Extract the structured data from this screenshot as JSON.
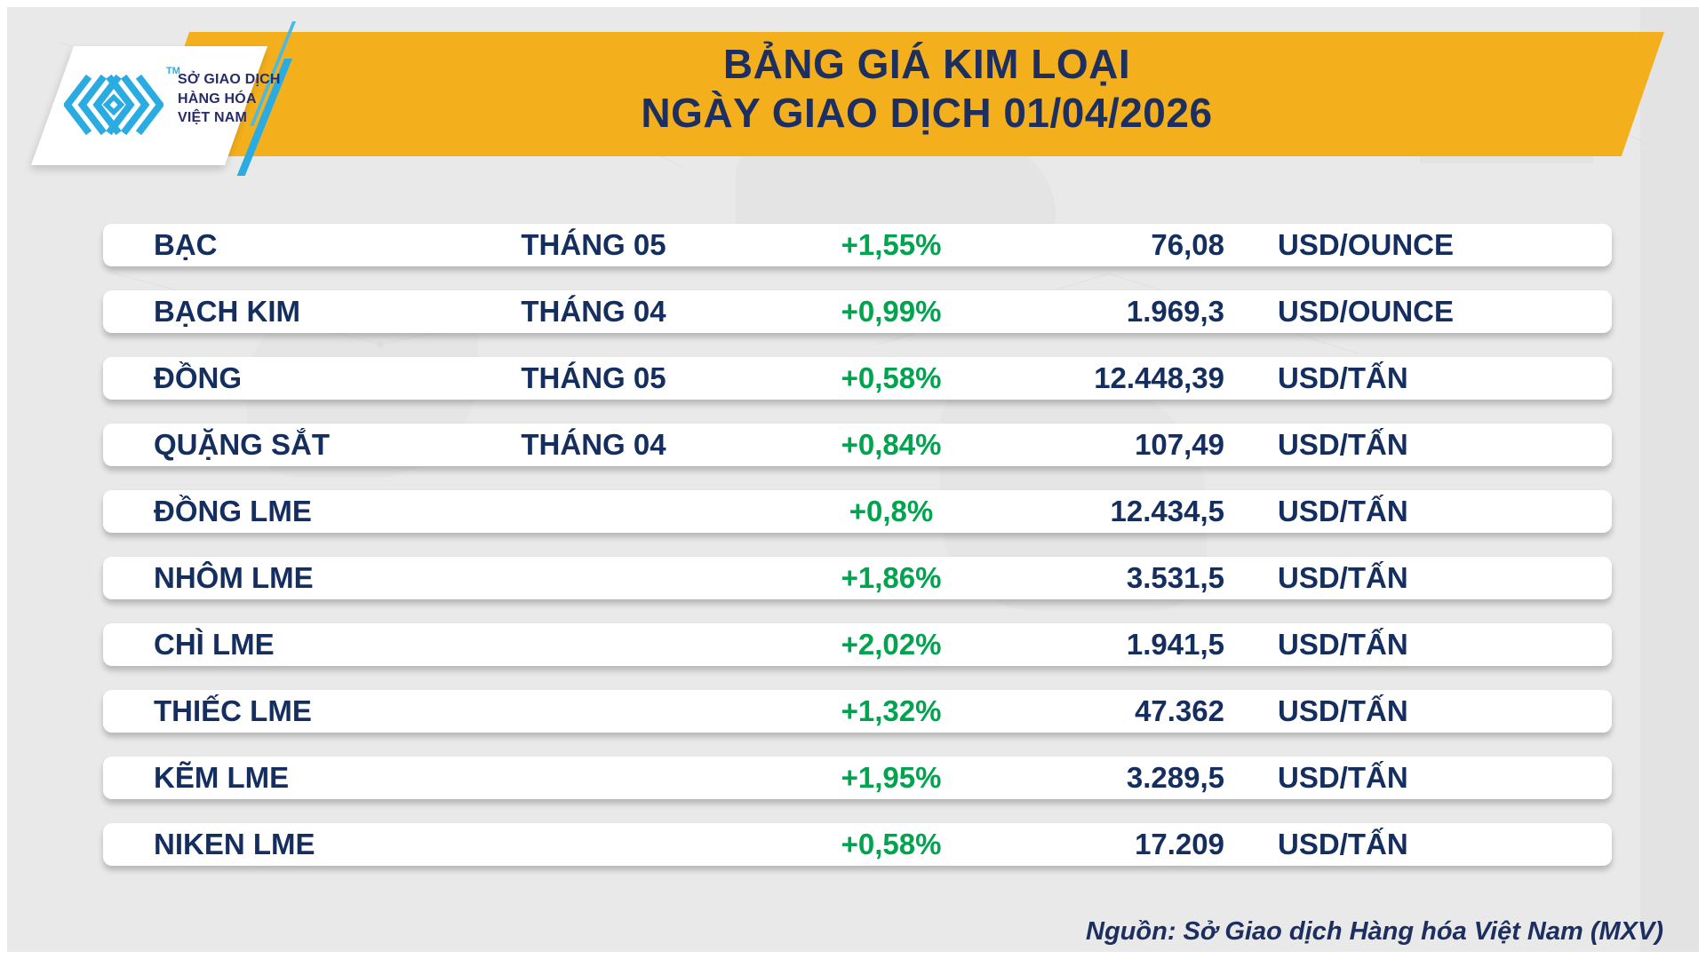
{
  "header": {
    "title_line1": "BẢNG GIÁ KIM LOẠI",
    "title_line2": "NGÀY GIAO DỊCH 01/04/2026",
    "logo": {
      "mark": "mxv-chevron-diamond-mark",
      "trademark": "TM",
      "org_line1": "SỞ GIAO DỊCH",
      "org_line2": "HÀNG HÓA",
      "org_line3": "VIỆT NAM"
    }
  },
  "table": {
    "rows": [
      {
        "name": "BẠC",
        "month": "THÁNG 05",
        "change": "+1,55%",
        "price": "76,08",
        "unit": "USD/OUNCE"
      },
      {
        "name": "BẠCH KIM",
        "month": "THÁNG 04",
        "change": "+0,99%",
        "price": "1.969,3",
        "unit": "USD/OUNCE"
      },
      {
        "name": "ĐỒNG",
        "month": "THÁNG 05",
        "change": "+0,58%",
        "price": "12.448,39",
        "unit": "USD/TẤN"
      },
      {
        "name": "QUẶNG SẮT",
        "month": "THÁNG 04",
        "change": "+0,84%",
        "price": "107,49",
        "unit": "USD/TẤN"
      },
      {
        "name": "ĐỒNG LME",
        "month": "",
        "change": "+0,8%",
        "price": "12.434,5",
        "unit": "USD/TẤN"
      },
      {
        "name": "NHÔM LME",
        "month": "",
        "change": "+1,86%",
        "price": "3.531,5",
        "unit": "USD/TẤN"
      },
      {
        "name": "CHÌ LME",
        "month": "",
        "change": "+2,02%",
        "price": "1.941,5",
        "unit": "USD/TẤN"
      },
      {
        "name": "THIẾC LME",
        "month": "",
        "change": "+1,32%",
        "price": "47.362",
        "unit": "USD/TẤN"
      },
      {
        "name": "KẼM LME",
        "month": "",
        "change": "+1,95%",
        "price": "3.289,5",
        "unit": "USD/TẤN"
      },
      {
        "name": "NIKEN LME",
        "month": "",
        "change": "+0,58%",
        "price": "17.209",
        "unit": "USD/TẤN"
      }
    ]
  },
  "footer": {
    "source": "Nguồn: Sở Giao dịch Hàng hóa Việt Nam (MXV)"
  },
  "colors": {
    "banner_yellow": "#f3af1c",
    "navy_text": "#1c2f60",
    "row_navy": "#142f5f",
    "positive_green": "#00a44f",
    "logo_cyan": "#2aace2",
    "background_gray": "#e9e9e9",
    "row_white": "#ffffff"
  },
  "chart_data": {
    "type": "table",
    "title": "BẢNG GIÁ KIM LOẠI",
    "subtitle": "NGÀY GIAO DỊCH 01/04/2026",
    "source": "Nguồn: Sở Giao dịch Hàng hóa Việt Nam (MXV)",
    "rows": [
      {
        "commodity": "BẠC",
        "contract_month": "THÁNG 05",
        "change_pct": 1.55,
        "price": 76.08,
        "unit": "USD/OUNCE"
      },
      {
        "commodity": "BẠCH KIM",
        "contract_month": "THÁNG 04",
        "change_pct": 0.99,
        "price": 1969.3,
        "unit": "USD/OUNCE"
      },
      {
        "commodity": "ĐỒNG",
        "contract_month": "THÁNG 05",
        "change_pct": 0.58,
        "price": 12448.39,
        "unit": "USD/TẤN"
      },
      {
        "commodity": "QUẶNG SẮT",
        "contract_month": "THÁNG 04",
        "change_pct": 0.84,
        "price": 107.49,
        "unit": "USD/TẤN"
      },
      {
        "commodity": "ĐỒNG LME",
        "contract_month": null,
        "change_pct": 0.8,
        "price": 12434.5,
        "unit": "USD/TẤN"
      },
      {
        "commodity": "NHÔM LME",
        "contract_month": null,
        "change_pct": 1.86,
        "price": 3531.5,
        "unit": "USD/TẤN"
      },
      {
        "commodity": "CHÌ LME",
        "contract_month": null,
        "change_pct": 2.02,
        "price": 1941.5,
        "unit": "USD/TẤN"
      },
      {
        "commodity": "THIẾC LME",
        "contract_month": null,
        "change_pct": 1.32,
        "price": 47362,
        "unit": "USD/TẤN"
      },
      {
        "commodity": "KẼM LME",
        "contract_month": null,
        "change_pct": 1.95,
        "price": 3289.5,
        "unit": "USD/TẤN"
      },
      {
        "commodity": "NIKEN LME",
        "contract_month": null,
        "change_pct": 0.58,
        "price": 17209,
        "unit": "USD/TẤN"
      }
    ]
  }
}
